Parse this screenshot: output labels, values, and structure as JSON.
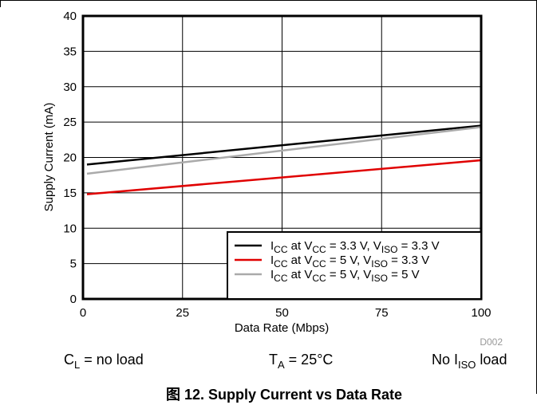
{
  "chart_data": {
    "type": "line",
    "xlabel": "Data Rate (Mbps)",
    "ylabel": "Supply Current (mA)",
    "xlim": [
      0,
      100
    ],
    "ylim": [
      0,
      40
    ],
    "xticks": [
      "0",
      "25",
      "50",
      "75",
      "100"
    ],
    "yticks": [
      "0",
      "5",
      "10",
      "15",
      "20",
      "25",
      "30",
      "35",
      "40"
    ],
    "grid": true,
    "legend_position": "bottom-right",
    "series": [
      {
        "name": "ICC at VCC = 3.3 V, VISO = 3.3 V",
        "name_parts": {
          "pre": "I",
          "sub1": "CC",
          "mid1": " at V",
          "sub2": "CC",
          "mid2": " = 3.3 V, V",
          "sub3": "ISO",
          "post": " = 3.3 V"
        },
        "color": "#000000",
        "x": [
          1,
          100
        ],
        "y": [
          19.0,
          24.5
        ]
      },
      {
        "name": "ICC at VCC = 5 V, VISO = 3.3 V",
        "name_parts": {
          "pre": "I",
          "sub1": "CC",
          "mid1": " at V",
          "sub2": "CC",
          "mid2": " = 5 V, V",
          "sub3": "ISO",
          "post": " = 3.3 V"
        },
        "color": "#e00000",
        "x": [
          1,
          100
        ],
        "y": [
          14.8,
          19.6
        ]
      },
      {
        "name": "ICC at VCC = 5 V, VISO = 5 V",
        "name_parts": {
          "pre": "I",
          "sub1": "CC",
          "mid1": " at V",
          "sub2": "CC",
          "mid2": " = 5 V, V",
          "sub3": "ISO",
          "post": " = 5 V"
        },
        "color": "#aaaaaa",
        "x": [
          1,
          100
        ],
        "y": [
          17.7,
          24.3
        ]
      }
    ]
  },
  "figure_code": "D002",
  "conditions": {
    "load": {
      "pre": "C",
      "sub": "L",
      "post": " = no load"
    },
    "temp": {
      "pre": "T",
      "sub": "A",
      "post": " = 25°C"
    },
    "iso": {
      "pre": "No I",
      "sub": "ISO",
      "post": " load"
    }
  },
  "caption": "图 12. Supply Current vs Data Rate"
}
